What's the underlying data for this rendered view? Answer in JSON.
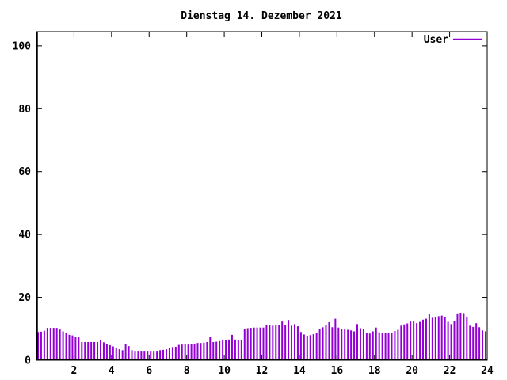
{
  "title": "Dienstag 14. Dezember 2021",
  "legend": {
    "label": "User",
    "color": "#9400d3"
  },
  "colors": {
    "bar": "#9400d3",
    "axis": "#000000",
    "background": "#ffffff"
  },
  "chart_data": {
    "type": "bar",
    "title": "Dienstag 14. Dezember 2021",
    "xlabel": "",
    "ylabel": "",
    "x_unit": "hour of day",
    "interval_minutes": 10,
    "xlim": [
      0,
      24
    ],
    "ylim": [
      0,
      104.5
    ],
    "x_ticks": [
      2,
      4,
      6,
      8,
      10,
      12,
      14,
      16,
      18,
      20,
      22,
      24
    ],
    "y_ticks": [
      0,
      20,
      40,
      60,
      80,
      100
    ],
    "grid": false,
    "legend_entries": [
      "User"
    ],
    "legend_position": "top-right-inside",
    "bar_color": "#9400d3",
    "series": [
      {
        "name": "User",
        "values": [
          9.0,
          9.1,
          9.4,
          10.3,
          10.3,
          10.3,
          10.3,
          9.8,
          9.2,
          8.6,
          8.1,
          7.9,
          7.3,
          7.3,
          5.8,
          5.8,
          5.8,
          5.8,
          5.8,
          5.8,
          6.3,
          5.7,
          5.2,
          4.8,
          4.4,
          3.9,
          3.5,
          3.2,
          5.2,
          4.5,
          3.2,
          3.0,
          3.0,
          3.0,
          3.0,
          3.0,
          3.0,
          3.0,
          3.0,
          3.2,
          3.3,
          3.5,
          4.0,
          4.2,
          4.3,
          4.9,
          5.0,
          5.1,
          5.0,
          5.2,
          5.3,
          5.5,
          5.5,
          5.6,
          5.8,
          7.3,
          5.8,
          5.9,
          6.1,
          6.4,
          6.5,
          6.6,
          8.1,
          6.6,
          6.5,
          6.5,
          10.0,
          10.2,
          10.3,
          10.4,
          10.4,
          10.4,
          10.4,
          11.2,
          11.2,
          11.0,
          11.2,
          11.2,
          12.3,
          11.3,
          12.8,
          11.0,
          11.5,
          10.8,
          9.0,
          8.2,
          7.8,
          8.0,
          8.3,
          8.8,
          10.0,
          10.5,
          11.2,
          12.1,
          10.5,
          13.2,
          10.4,
          10.0,
          9.8,
          9.7,
          9.5,
          9.2,
          11.5,
          10.2,
          10.0,
          8.6,
          8.5,
          9.2,
          10.4,
          8.9,
          8.8,
          8.6,
          8.7,
          8.8,
          9.3,
          9.7,
          11.0,
          11.4,
          11.7,
          12.3,
          12.6,
          11.8,
          12.2,
          12.9,
          13.2,
          14.8,
          13.5,
          13.8,
          14.0,
          14.2,
          13.8,
          12.2,
          11.5,
          12.4,
          14.9,
          15.1,
          15.0,
          13.8,
          11.0,
          10.6,
          11.8,
          10.5,
          9.5,
          9.2
        ]
      }
    ]
  }
}
